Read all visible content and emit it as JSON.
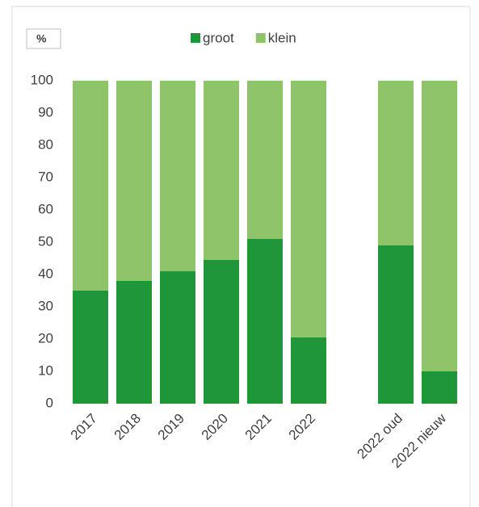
{
  "chart_data": {
    "type": "stacked_bar",
    "unit_label": "%",
    "categories": [
      "2017",
      "2018",
      "2019",
      "2020",
      "2021",
      "2022",
      null,
      "2022 oud",
      "2022 nieuw"
    ],
    "series": [
      {
        "name": "groot",
        "color": "#1e9639",
        "values": [
          35,
          38,
          41,
          44.5,
          51,
          20.5,
          null,
          49,
          10
        ]
      },
      {
        "name": "klein",
        "color": "#8fc46a",
        "values": [
          65,
          62,
          59,
          55.5,
          49,
          79.5,
          null,
          51,
          90
        ]
      }
    ],
    "ylim": [
      0,
      100
    ],
    "yticks": [
      0,
      10,
      20,
      30,
      40,
      50,
      60,
      70,
      80,
      90,
      100
    ],
    "grid": false,
    "legend": "top"
  }
}
